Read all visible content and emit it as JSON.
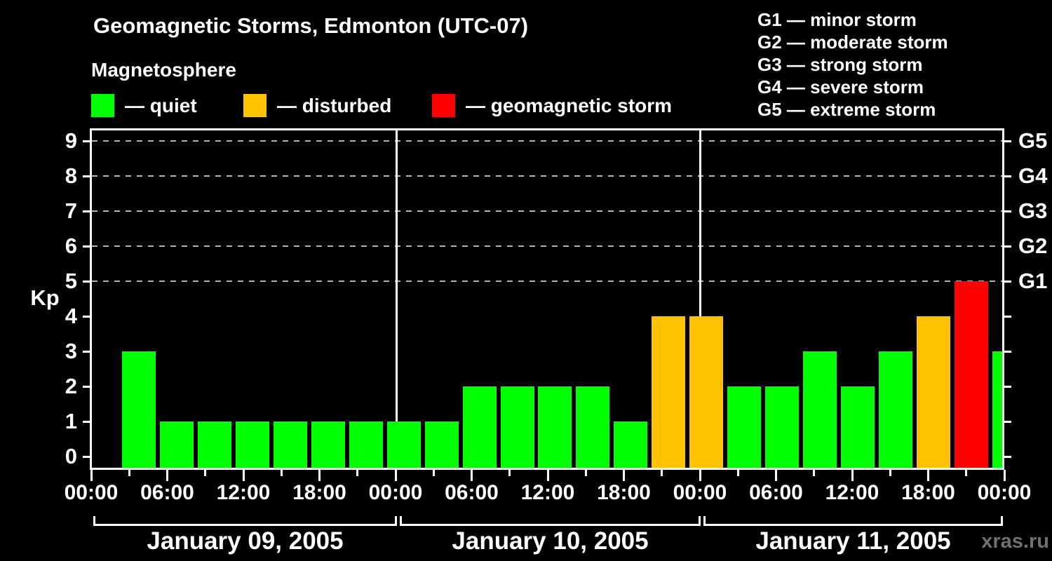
{
  "header": {
    "title": "Geomagnetic Storms, Edmonton (UTC-07)",
    "subtitle": "Magnetosphere"
  },
  "legend": {
    "items": [
      {
        "name": "quiet",
        "label": "— quiet",
        "color": "#00FF00"
      },
      {
        "name": "disturbed",
        "label": "— disturbed",
        "color": "#FFC200"
      },
      {
        "name": "storm",
        "label": "— geomagnetic storm",
        "color": "#FF0000"
      }
    ]
  },
  "storm_scale_legend": {
    "items": [
      "G1 — minor storm",
      "G2 — moderate storm",
      "G3 — strong storm",
      "G4 — severe storm",
      "G5 — extreme storm"
    ]
  },
  "watermark": "xras.ru",
  "chart_data": {
    "type": "bar",
    "title": "Geomagnetic Storms, Edmonton (UTC-07)",
    "xlabel": "",
    "ylabel": "Kp",
    "ylim": [
      0,
      9.4
    ],
    "y_ticks": [
      0,
      1,
      2,
      3,
      4,
      5,
      6,
      7,
      8,
      9
    ],
    "grid_levels_kp": [
      5,
      6,
      7,
      8,
      9
    ],
    "grid_on": true,
    "right_axis": [
      {
        "label": "G5",
        "kp": 9
      },
      {
        "label": "G4",
        "kp": 8
      },
      {
        "label": "G3",
        "kp": 7
      },
      {
        "label": "G2",
        "kp": 6
      },
      {
        "label": "G1",
        "kp": 5
      }
    ],
    "x_major_tick_labels": [
      "00:00",
      "06:00",
      "12:00",
      "18:00",
      "00:00",
      "06:00",
      "12:00",
      "18:00",
      "00:00",
      "06:00",
      "12:00",
      "18:00",
      "00:00"
    ],
    "bar_interval_hours": 3,
    "days": [
      {
        "date": "January 09, 2005",
        "kp_values": [
          3,
          1,
          1,
          1,
          1,
          1,
          1,
          1
        ]
      },
      {
        "date": "January 10, 2005",
        "kp_values": [
          1,
          2,
          2,
          2,
          2,
          1,
          4,
          4
        ]
      },
      {
        "date": "January 11, 2005",
        "kp_values": [
          2,
          2,
          3,
          2,
          3,
          4,
          5,
          3
        ]
      }
    ],
    "color_rules": {
      "quiet_max_kp": 3,
      "disturbed_kp": 4,
      "storm_min_kp": 5
    }
  }
}
